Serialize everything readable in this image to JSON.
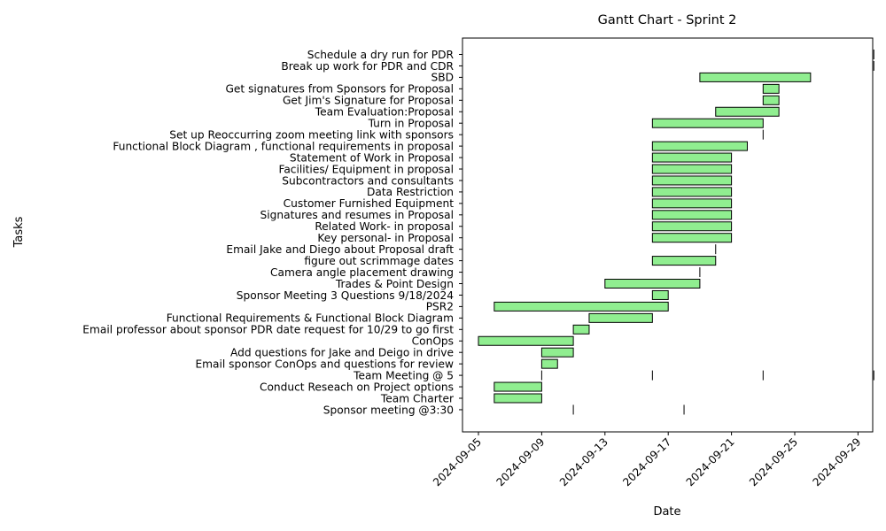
{
  "chart_data": {
    "type": "gantt",
    "title": "Gantt Chart - Sprint 2",
    "xlabel": "Date",
    "ylabel": "Tasks",
    "xlim": [
      "2024-09-05",
      "2024-09-30"
    ],
    "x_ticks": [
      "2024-09-05",
      "2024-09-09",
      "2024-09-13",
      "2024-09-17",
      "2024-09-21",
      "2024-09-25",
      "2024-09-29"
    ],
    "bar_color": "#90ee90",
    "edge_color": "#000000",
    "tasks": [
      {
        "name": "Sponsor meeting @3:30",
        "segments": [
          [
            "2024-09-11",
            "2024-09-11"
          ],
          [
            "2024-09-18",
            "2024-09-18"
          ]
        ]
      },
      {
        "name": "Team Charter",
        "segments": [
          [
            "2024-09-06",
            "2024-09-09"
          ]
        ]
      },
      {
        "name": "Conduct Reseach on Project options",
        "segments": [
          [
            "2024-09-06",
            "2024-09-09"
          ]
        ]
      },
      {
        "name": "Team Meeting @ 5",
        "segments": [
          [
            "2024-09-09",
            "2024-09-09"
          ],
          [
            "2024-09-16",
            "2024-09-16"
          ],
          [
            "2024-09-23",
            "2024-09-23"
          ],
          [
            "2024-09-30",
            "2024-09-30"
          ]
        ]
      },
      {
        "name": "Email sponsor ConOps and questions for review",
        "segments": [
          [
            "2024-09-09",
            "2024-09-10"
          ]
        ]
      },
      {
        "name": "Add questions for Jake and Deigo in drive",
        "segments": [
          [
            "2024-09-09",
            "2024-09-11"
          ]
        ]
      },
      {
        "name": "ConOps",
        "segments": [
          [
            "2024-09-05",
            "2024-09-11"
          ]
        ]
      },
      {
        "name": "Email professor about sponsor PDR date request for 10/29 to go first",
        "segments": [
          [
            "2024-09-11",
            "2024-09-12"
          ]
        ]
      },
      {
        "name": "Functional Requirements & Functional Block Diagram",
        "segments": [
          [
            "2024-09-12",
            "2024-09-16"
          ]
        ]
      },
      {
        "name": "PSR2",
        "segments": [
          [
            "2024-09-06",
            "2024-09-17"
          ]
        ]
      },
      {
        "name": "Sponsor Meeting 3 Questions 9/18/2024",
        "segments": [
          [
            "2024-09-16",
            "2024-09-17"
          ]
        ]
      },
      {
        "name": "Trades & Point Design",
        "segments": [
          [
            "2024-09-13",
            "2024-09-19"
          ]
        ]
      },
      {
        "name": "Camera angle placement drawing",
        "segments": [
          [
            "2024-09-19",
            "2024-09-19"
          ]
        ]
      },
      {
        "name": "figure out scrimmage dates",
        "segments": [
          [
            "2024-09-16",
            "2024-09-20"
          ]
        ]
      },
      {
        "name": "Email Jake and Diego about Proposal draft",
        "segments": [
          [
            "2024-09-20",
            "2024-09-20"
          ]
        ]
      },
      {
        "name": "Key personal- in Proposal",
        "segments": [
          [
            "2024-09-16",
            "2024-09-21"
          ]
        ]
      },
      {
        "name": "Related Work- in proposal",
        "segments": [
          [
            "2024-09-16",
            "2024-09-21"
          ]
        ]
      },
      {
        "name": "Signatures and resumes in Proposal",
        "segments": [
          [
            "2024-09-16",
            "2024-09-21"
          ]
        ]
      },
      {
        "name": "Customer Furnished Equipment",
        "segments": [
          [
            "2024-09-16",
            "2024-09-21"
          ]
        ]
      },
      {
        "name": "Data Restriction",
        "segments": [
          [
            "2024-09-16",
            "2024-09-21"
          ]
        ]
      },
      {
        "name": "Subcontractors and consultants",
        "segments": [
          [
            "2024-09-16",
            "2024-09-21"
          ]
        ]
      },
      {
        "name": "Facilities/ Equipment in proposal",
        "segments": [
          [
            "2024-09-16",
            "2024-09-21"
          ]
        ]
      },
      {
        "name": "Statement of Work in Proposal",
        "segments": [
          [
            "2024-09-16",
            "2024-09-21"
          ]
        ]
      },
      {
        "name": "Functional Block Diagram , functional requirements in proposal",
        "segments": [
          [
            "2024-09-16",
            "2024-09-22"
          ]
        ]
      },
      {
        "name": "Set up Reoccurring zoom meeting link with sponsors",
        "segments": [
          [
            "2024-09-23",
            "2024-09-23"
          ]
        ]
      },
      {
        "name": "Turn in Proposal",
        "segments": [
          [
            "2024-09-16",
            "2024-09-23"
          ]
        ]
      },
      {
        "name": "Team Evaluation:Proposal",
        "segments": [
          [
            "2024-09-20",
            "2024-09-24"
          ]
        ]
      },
      {
        "name": "Get Jim's Signature for Proposal",
        "segments": [
          [
            "2024-09-23",
            "2024-09-24"
          ]
        ]
      },
      {
        "name": "Get signatures from Sponsors for Proposal",
        "segments": [
          [
            "2024-09-23",
            "2024-09-24"
          ]
        ]
      },
      {
        "name": "SBD",
        "segments": [
          [
            "2024-09-19",
            "2024-09-26"
          ]
        ]
      },
      {
        "name": "Break up work for PDR and CDR",
        "segments": [
          [
            "2024-09-30",
            "2024-09-30"
          ]
        ]
      },
      {
        "name": "Schedule a dry run for PDR",
        "segments": [
          [
            "2024-09-30",
            "2024-09-30"
          ]
        ]
      }
    ]
  }
}
